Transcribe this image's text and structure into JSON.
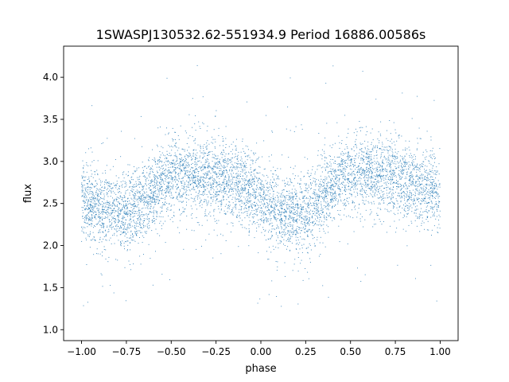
{
  "chart_data": {
    "type": "scatter",
    "title": "1SWASPJ130532.62-551934.9 Period 16886.00586s",
    "xlabel": "phase",
    "ylabel": "flux",
    "xlim": [
      -1.1,
      1.1
    ],
    "ylim": [
      0.87,
      4.37
    ],
    "x_ticks": [
      -1.0,
      -0.75,
      -0.5,
      -0.25,
      0.0,
      0.25,
      0.5,
      0.75,
      1.0
    ],
    "x_tick_labels": [
      "−1.00",
      "−0.75",
      "−0.50",
      "−0.25",
      "0.00",
      "0.25",
      "0.50",
      "0.75",
      "1.00"
    ],
    "y_ticks": [
      1.0,
      1.5,
      2.0,
      2.5,
      3.0,
      3.5,
      4.0
    ],
    "y_tick_labels": [
      "1.0",
      "1.5",
      "2.0",
      "2.5",
      "3.0",
      "3.5",
      "4.0"
    ],
    "grid": false,
    "marker_color": "#1f77b4",
    "series": [
      {
        "name": "",
        "phase_x": [
          -1.0,
          -0.95,
          -0.9,
          -0.85,
          -0.8,
          -0.75,
          -0.7,
          -0.65,
          -0.6,
          -0.55,
          -0.5,
          -0.45,
          -0.4,
          -0.35,
          -0.3,
          -0.25,
          -0.2,
          -0.15,
          -0.1,
          -0.05,
          0.0,
          0.05,
          0.1,
          0.15,
          0.2,
          0.25,
          0.3,
          0.35,
          0.4,
          0.45,
          0.5,
          0.55,
          0.6,
          0.65,
          0.7,
          0.75,
          0.8,
          0.85,
          0.9,
          0.95,
          1.0
        ],
        "mean_flux": [
          2.55,
          2.5,
          2.45,
          2.42,
          2.4,
          2.4,
          2.45,
          2.55,
          2.65,
          2.72,
          2.78,
          2.82,
          2.85,
          2.85,
          2.82,
          2.8,
          2.78,
          2.75,
          2.72,
          2.65,
          2.55,
          2.45,
          2.38,
          2.35,
          2.38,
          2.42,
          2.5,
          2.6,
          2.7,
          2.78,
          2.82,
          2.85,
          2.85,
          2.83,
          2.8,
          2.78,
          2.76,
          2.73,
          2.7,
          2.65,
          2.6
        ],
        "scatter_spread": 0.22,
        "outlier_range": [
          1.0,
          4.2
        ]
      }
    ]
  }
}
